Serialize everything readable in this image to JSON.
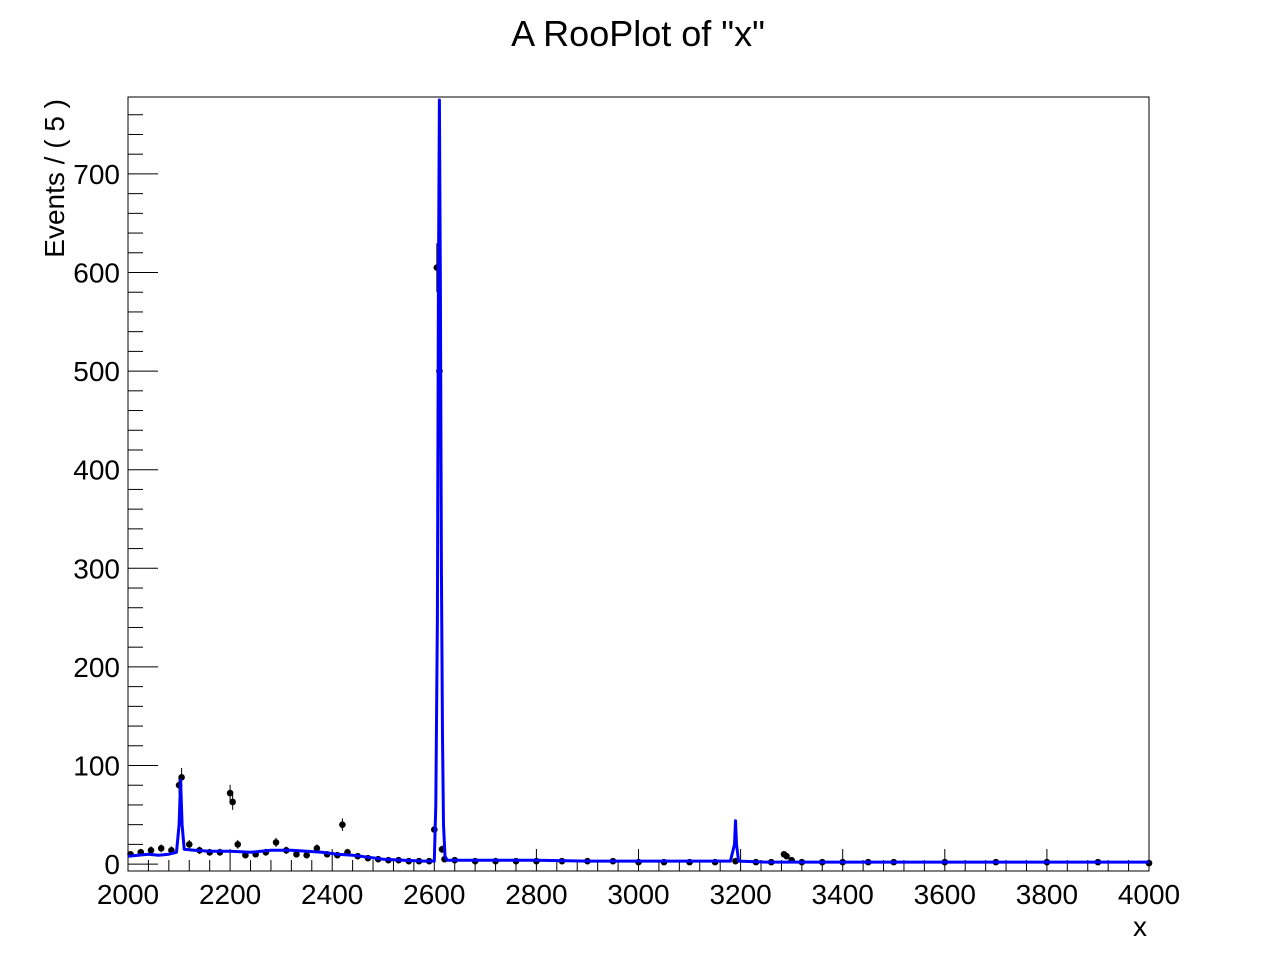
{
  "chart_data": {
    "type": "line",
    "title": "A RooPlot of \"x\"",
    "xlabel": "x",
    "ylabel": "Events / ( 5 )",
    "xlim": [
      2000,
      4000
    ],
    "ylim": [
      -7,
      778
    ],
    "x_ticks": [
      "2000",
      "2200",
      "2400",
      "2600",
      "2800",
      "3000",
      "3200",
      "3400",
      "3600",
      "3800",
      "4000"
    ],
    "y_ticks": [
      "0",
      "100",
      "200",
      "300",
      "400",
      "500",
      "600",
      "700"
    ],
    "grid": false,
    "series": [
      {
        "style": "points-with-errors",
        "color": "#000000",
        "x": [
          2005,
          2025,
          2045,
          2065,
          2085,
          2100,
          2105,
          2120,
          2140,
          2160,
          2180,
          2200,
          2205,
          2215,
          2230,
          2250,
          2270,
          2290,
          2310,
          2330,
          2350,
          2370,
          2390,
          2410,
          2420,
          2430,
          2450,
          2470,
          2490,
          2510,
          2530,
          2550,
          2570,
          2590,
          2600,
          2605,
          2610,
          2615,
          2620,
          2640,
          2680,
          2720,
          2760,
          2800,
          2850,
          2900,
          2950,
          3000,
          3050,
          3100,
          3150,
          3190,
          3230,
          3260,
          3285,
          3290,
          3300,
          3320,
          3360,
          3400,
          3450,
          3500,
          3600,
          3700,
          3800,
          3900,
          4000
        ],
        "y": [
          10,
          12,
          14,
          16,
          14,
          80,
          88,
          20,
          14,
          12,
          12,
          72,
          63,
          20,
          9,
          10,
          12,
          22,
          14,
          10,
          9,
          16,
          10,
          9,
          40,
          12,
          8,
          6,
          5,
          4,
          4,
          3,
          3,
          3,
          35,
          605,
          500,
          15,
          5,
          4,
          3,
          3,
          3,
          3,
          3,
          3,
          3,
          2,
          2,
          2,
          2,
          3,
          2,
          2,
          10,
          8,
          4,
          2,
          2,
          2,
          2,
          2,
          2,
          2,
          2,
          2,
          1
        ],
        "err": [
          3,
          3.5,
          4,
          4,
          4,
          9,
          9.5,
          4.5,
          3.7,
          3.5,
          3.5,
          8.5,
          8,
          4.5,
          3,
          3,
          3.5,
          4.7,
          3.7,
          3,
          3,
          4,
          3,
          3,
          6.3,
          3.5,
          2.8,
          2.4,
          2.2,
          2,
          2,
          1.7,
          1.7,
          1.7,
          6,
          24.6,
          22.4,
          3.9,
          2.2,
          2,
          1.7,
          1.7,
          1.7,
          1.7,
          1.7,
          1.7,
          1.7,
          1.4,
          1.4,
          1.4,
          1.4,
          1.7,
          1.4,
          1.4,
          3.2,
          2.8,
          2,
          1.4,
          1.4,
          1.4,
          1.4,
          1.4,
          1.4,
          1.4,
          1.4,
          1.4,
          1
        ]
      },
      {
        "style": "line",
        "color": "#0000ff",
        "x": [
          2000,
          2020,
          2040,
          2060,
          2080,
          2095,
          2100,
          2103,
          2106,
          2110,
          2130,
          2160,
          2200,
          2240,
          2280,
          2320,
          2350,
          2380,
          2410,
          2440,
          2470,
          2500,
          2540,
          2580,
          2600,
          2603,
          2606,
          2608,
          2610,
          2612,
          2614,
          2616,
          2618,
          2621,
          2625,
          2640,
          2700,
          2800,
          2900,
          3000,
          3100,
          3180,
          3188,
          3190,
          3192,
          3196,
          3250,
          3300,
          3400,
          3500,
          3600,
          3700,
          3800,
          3900,
          4000
        ],
        "y": [
          8,
          9,
          10,
          9,
          10,
          12,
          40,
          85,
          40,
          15,
          14,
          13,
          13,
          12,
          14,
          14,
          13,
          12,
          10,
          9,
          7,
          5,
          4,
          3,
          3,
          60,
          250,
          580,
          775,
          580,
          300,
          130,
          40,
          8,
          4,
          4,
          4,
          4,
          3,
          3,
          3,
          3,
          20,
          44,
          20,
          3,
          2,
          2,
          2,
          2,
          2,
          2,
          2,
          2,
          2
        ]
      }
    ]
  }
}
